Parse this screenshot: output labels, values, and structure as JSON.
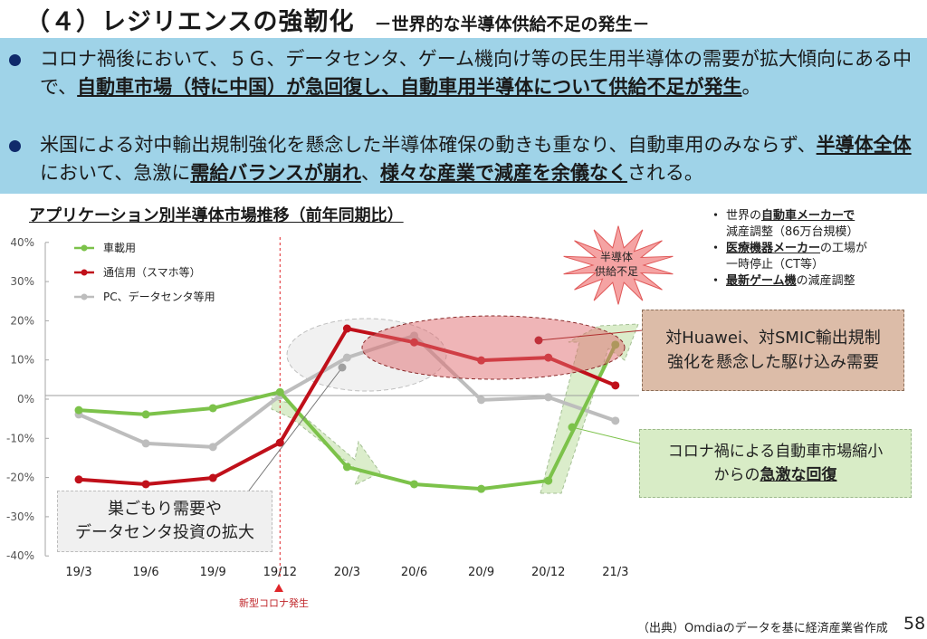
{
  "header": {
    "title": "（４）レジリエンスの強靭化",
    "subtitle": "－世界的な半導体供給不足の発生－"
  },
  "summary": {
    "bullets": [
      {
        "segments": [
          {
            "text": "コロナ禍後において、５Ｇ、データセンタ、ゲーム機向け等の民生用半導体の需要が拡大傾向にある中で、",
            "bold": false
          },
          {
            "text": "自動車市場（特に中国）が急回復し、自動車用半導体について供給不足が発生",
            "bold": true
          },
          {
            "text": "。",
            "bold": false
          }
        ]
      },
      {
        "segments": [
          {
            "text": "米国による対中輸出規制強化を懸念した半導体確保の動きも重なり、自動車用のみならず、",
            "bold": false
          },
          {
            "text": "半導体全体",
            "bold": true
          },
          {
            "text": "において、急激に",
            "bold": false
          },
          {
            "text": "需給バランスが崩れ",
            "bold": true
          },
          {
            "text": "、",
            "bold": false
          },
          {
            "text": "様々な産業で減産を余儀なく",
            "bold": true
          },
          {
            "text": "される。",
            "bold": false
          }
        ]
      }
    ]
  },
  "impact_notes": [
    {
      "line1_bold": "自動車メーカーで",
      "line1_prefix": "世界の",
      "line1_suffix": "",
      "line2": "減産調整（86万台規模）"
    },
    {
      "line1_bold": "医療機器メーカー",
      "line1_prefix": "",
      "line1_suffix": "の工場が",
      "line2": "一時停止（CT等）"
    },
    {
      "line1_bold": "最新ゲーム機",
      "line1_prefix": "",
      "line1_suffix": "の減産調整",
      "line2": ""
    }
  ],
  "annotations": {
    "burst_line1": "半導体",
    "burst_line2": "供給不足",
    "huawei_line1": "対Huawei、対SMIC輸出規制",
    "huawei_line2": "強化を懸念した駆け込み需要",
    "recovery_line1": "コロナ禍による自動車市場縮小",
    "recovery_line2_prefix": "からの",
    "recovery_line2_bold": "急激な回復",
    "stayhome_line1": "巣ごもり需要や",
    "stayhome_line2": "データセンタ投資の拡大",
    "covid_marker": "新型コロナ発生"
  },
  "footer": {
    "source": "（出典）Omdiaのデータを基に経済産業省作成",
    "page_number": "58"
  },
  "colors": {
    "automotive": "#7cc24a",
    "communication": "#c0101a",
    "pc": "#bdbdbd",
    "banner": "#9fd3e8",
    "bullet_dot": "#102a6b"
  },
  "chart_data": {
    "type": "line",
    "title": "アプリケーション別半導体市場推移（前年同期比）",
    "xlabel": "",
    "ylabel": "",
    "categories": [
      "19/3",
      "19/6",
      "19/9",
      "19/12",
      "20/3",
      "20/6",
      "20/9",
      "20/12",
      "21/3"
    ],
    "yticks": [
      "40%",
      "30%",
      "20%",
      "10%",
      "0%",
      "-10%",
      "-20%",
      "-30%",
      "-40%"
    ],
    "ylim": [
      -40,
      40
    ],
    "grid": false,
    "legend_position": "top-left",
    "series": [
      {
        "name": "車載用",
        "color": "#7cc24a",
        "values": [
          -2.8,
          -3.9,
          -2.3,
          1.8,
          -17.3,
          -21.7,
          -22.9,
          -20.8,
          13.9
        ]
      },
      {
        "name": "通信用（スマホ等）",
        "color": "#c0101a",
        "values": [
          -20.5,
          -21.7,
          -20.1,
          -11.1,
          18.0,
          14.5,
          9.9,
          10.6,
          3.5
        ]
      },
      {
        "name": "PC、データセンタ等用",
        "color": "#bdbdbd",
        "values": [
          -3.9,
          -11.3,
          -12.2,
          0.9,
          10.6,
          16.2,
          -0.2,
          0.5,
          -5.5
        ]
      }
    ],
    "event_marker": {
      "category": "19/12",
      "label": "新型コロナ発生"
    }
  }
}
